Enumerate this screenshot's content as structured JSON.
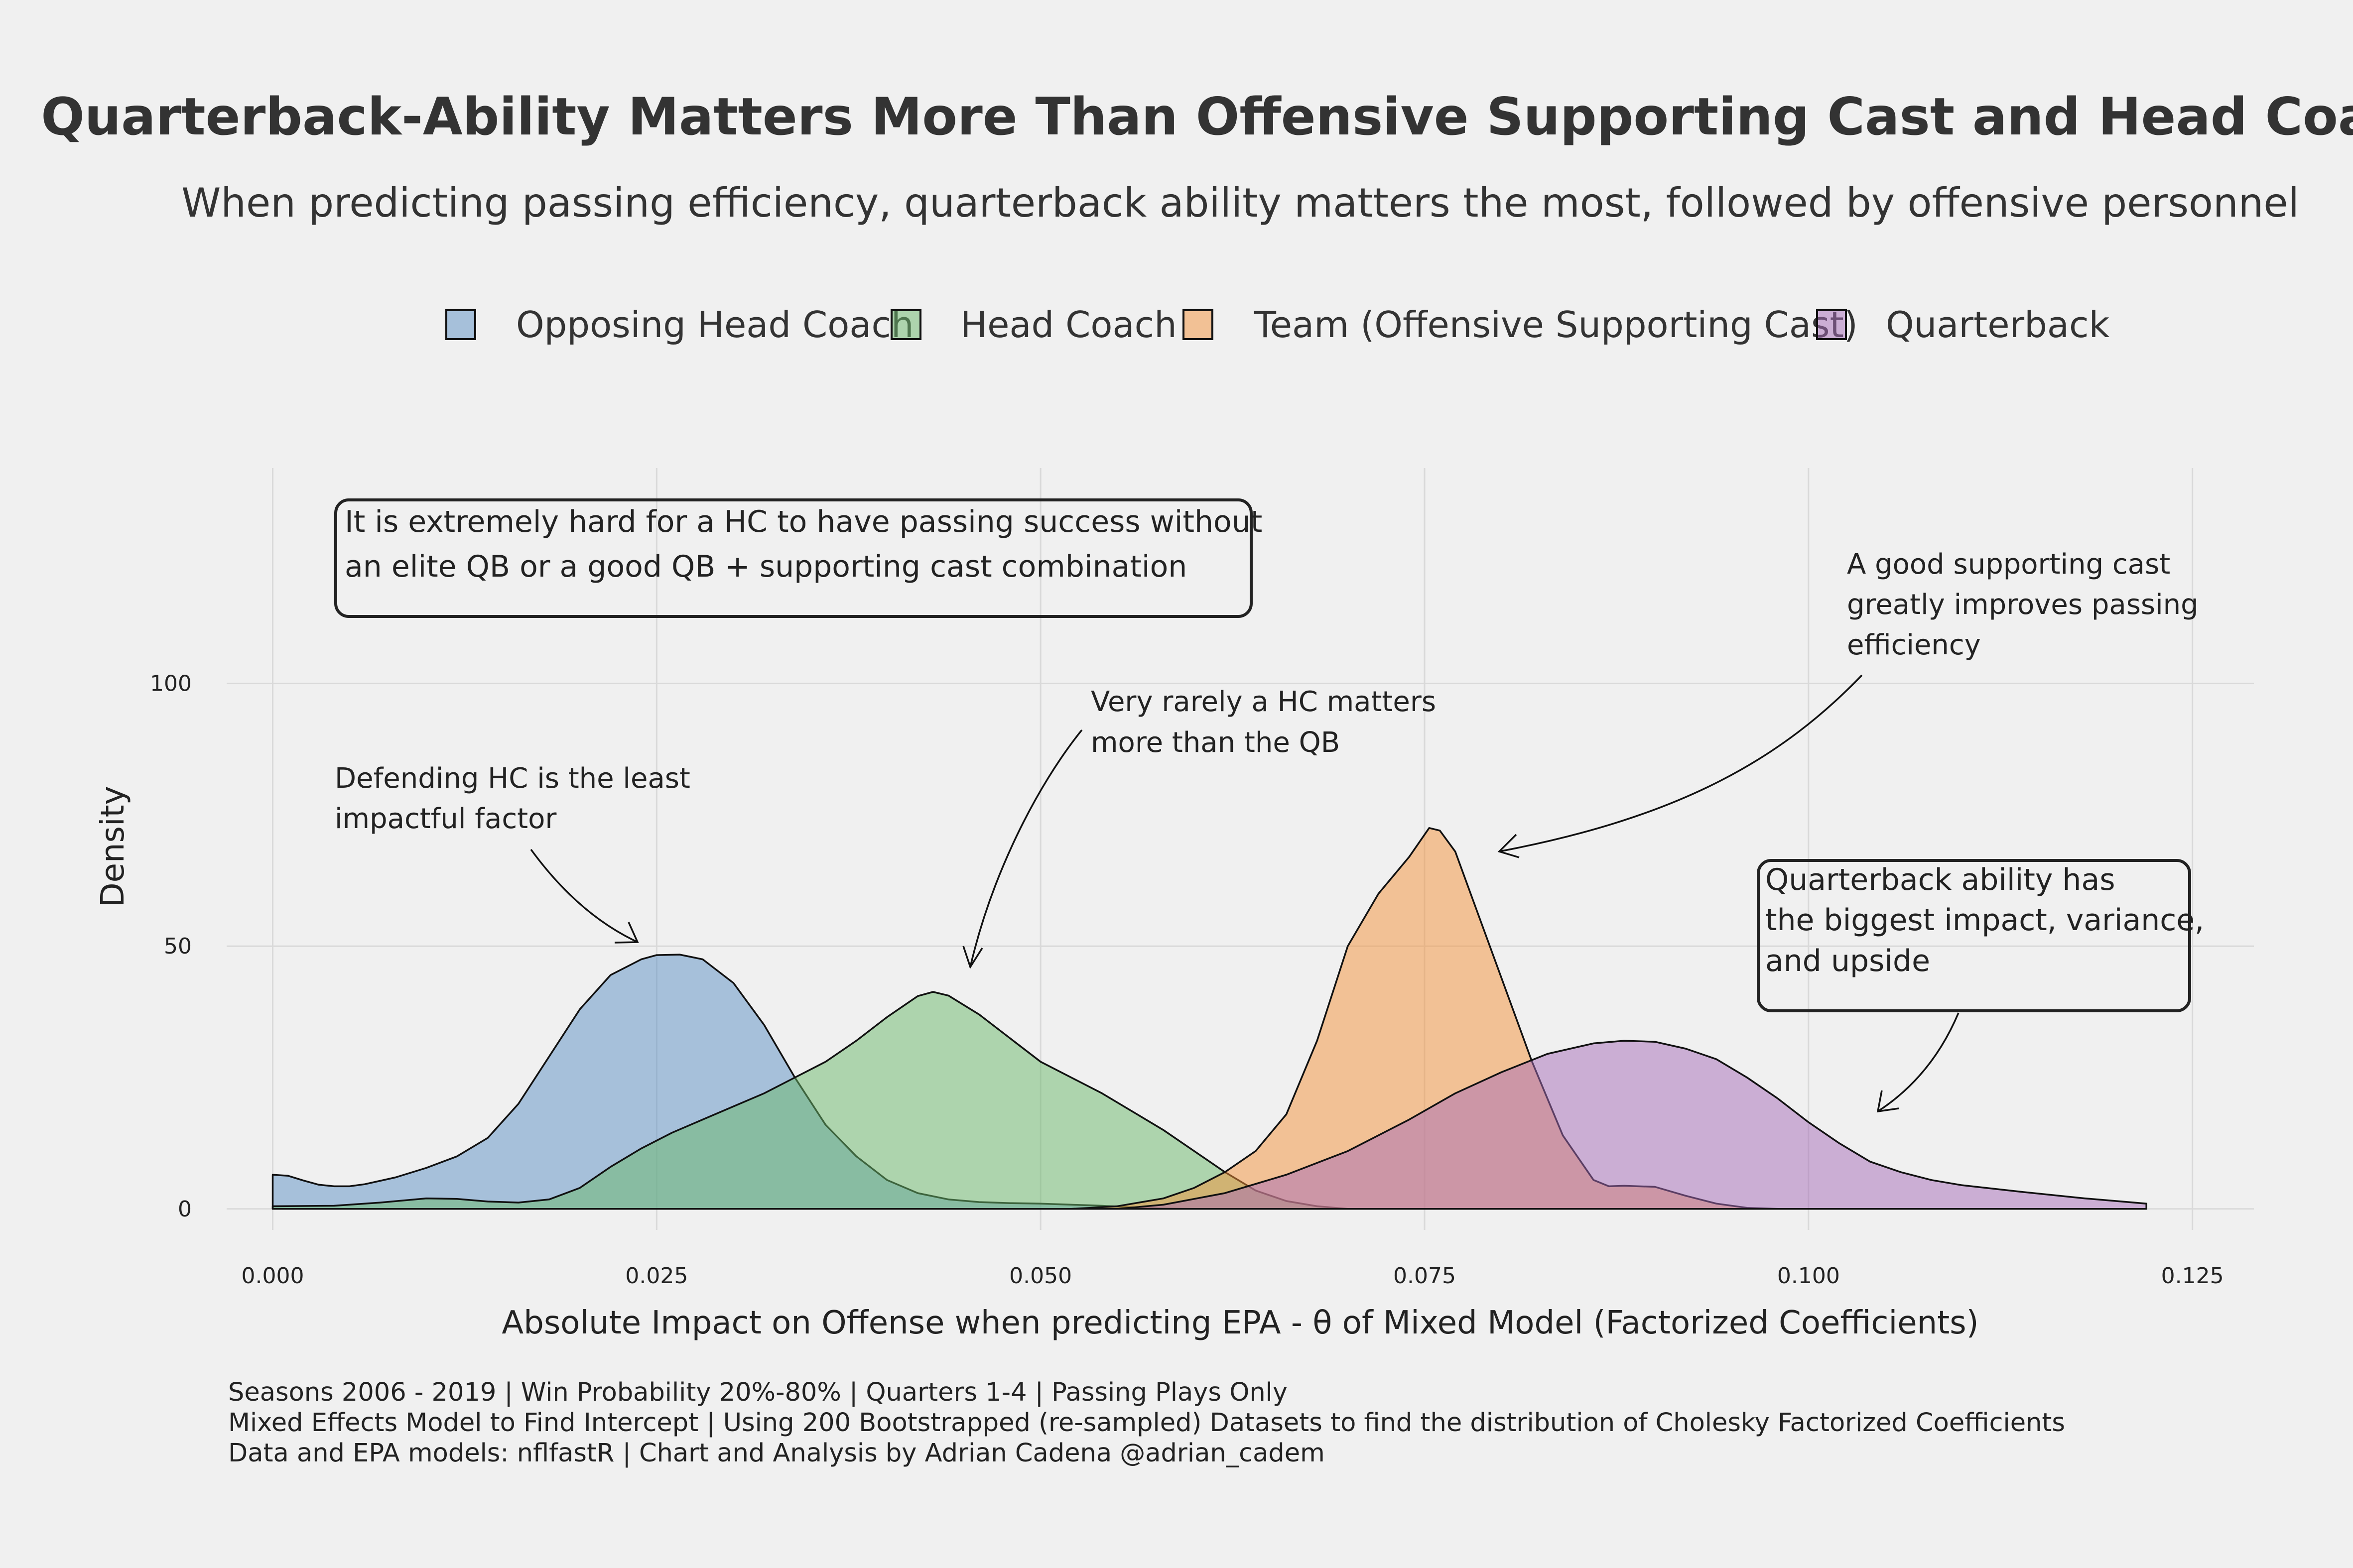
{
  "chart_data": {
    "type": "area",
    "title": "Quarterback-Ability Matters More Than Offensive Supporting Cast and Head Coach",
    "subtitle": "When predicting passing efficiency, quarterback ability matters the most, followed by offensive personnel",
    "xlabel": "Absolute Impact on Offense when predicting EPA - θ of Mixed Model (Factorized Coefficients)",
    "ylabel": "Density",
    "xlim": [
      -0.003,
      0.129
    ],
    "ylim": [
      -4,
      141
    ],
    "x_ticks": [
      "0.000",
      "0.025",
      "0.050",
      "0.075",
      "0.100",
      "0.125"
    ],
    "x_tick_values": [
      0,
      0.025,
      0.05,
      0.075,
      0.1,
      0.125
    ],
    "y_ticks": [
      "0",
      "50",
      "100"
    ],
    "y_tick_values": [
      0,
      50,
      100
    ],
    "grid": true,
    "legend_position": "top",
    "series": [
      {
        "name": "Opposing Head Coach",
        "color": "#5b8fc4",
        "points": [
          [
            0,
            6.5
          ],
          [
            0.001,
            6.3
          ],
          [
            0.002,
            5.4
          ],
          [
            0.003,
            4.6
          ],
          [
            0.004,
            4.3
          ],
          [
            0.005,
            4.3
          ],
          [
            0.006,
            4.7
          ],
          [
            0.008,
            6
          ],
          [
            0.01,
            7.8
          ],
          [
            0.012,
            10
          ],
          [
            0.014,
            13.5
          ],
          [
            0.016,
            20
          ],
          [
            0.018,
            29
          ],
          [
            0.02,
            38
          ],
          [
            0.022,
            44.5
          ],
          [
            0.024,
            47.5
          ],
          [
            0.025,
            48.3
          ],
          [
            0.0265,
            48.4
          ],
          [
            0.028,
            47.5
          ],
          [
            0.03,
            43
          ],
          [
            0.032,
            35
          ],
          [
            0.034,
            25
          ],
          [
            0.036,
            16
          ],
          [
            0.038,
            10
          ],
          [
            0.04,
            5.5
          ],
          [
            0.042,
            3
          ],
          [
            0.044,
            1.8
          ],
          [
            0.046,
            1.3
          ],
          [
            0.048,
            1.1
          ],
          [
            0.05,
            1
          ],
          [
            0.052,
            0.8
          ],
          [
            0.054,
            0.6
          ],
          [
            0.056,
            0.3
          ],
          [
            0.058,
            0.1
          ],
          [
            0.06,
            0
          ]
        ]
      },
      {
        "name": "Head Coach",
        "color": "#6ab86a",
        "points": [
          [
            0,
            0.5
          ],
          [
            0.004,
            0.6
          ],
          [
            0.007,
            1.2
          ],
          [
            0.01,
            2
          ],
          [
            0.012,
            1.9
          ],
          [
            0.014,
            1.4
          ],
          [
            0.016,
            1.2
          ],
          [
            0.018,
            1.8
          ],
          [
            0.02,
            4
          ],
          [
            0.022,
            8
          ],
          [
            0.024,
            11.5
          ],
          [
            0.026,
            14.5
          ],
          [
            0.028,
            17
          ],
          [
            0.03,
            19.5
          ],
          [
            0.032,
            22
          ],
          [
            0.034,
            25
          ],
          [
            0.036,
            28
          ],
          [
            0.038,
            32
          ],
          [
            0.04,
            36.5
          ],
          [
            0.042,
            40.5
          ],
          [
            0.043,
            41.3
          ],
          [
            0.044,
            40.6
          ],
          [
            0.046,
            37
          ],
          [
            0.048,
            32.5
          ],
          [
            0.05,
            28
          ],
          [
            0.052,
            25
          ],
          [
            0.054,
            22
          ],
          [
            0.056,
            18.5
          ],
          [
            0.058,
            15
          ],
          [
            0.06,
            11
          ],
          [
            0.062,
            7
          ],
          [
            0.064,
            3.5
          ],
          [
            0.066,
            1.5
          ],
          [
            0.068,
            0.5
          ],
          [
            0.07,
            0
          ]
        ]
      },
      {
        "name": "Team (Offensive Supporting Cast)",
        "color": "#f4923a",
        "points": [
          [
            0.052,
            0
          ],
          [
            0.055,
            0.5
          ],
          [
            0.058,
            2
          ],
          [
            0.06,
            4
          ],
          [
            0.062,
            7
          ],
          [
            0.064,
            11
          ],
          [
            0.066,
            18
          ],
          [
            0.068,
            32
          ],
          [
            0.07,
            50
          ],
          [
            0.072,
            60
          ],
          [
            0.074,
            67
          ],
          [
            0.0753,
            72.5
          ],
          [
            0.076,
            72
          ],
          [
            0.077,
            68
          ],
          [
            0.078,
            60
          ],
          [
            0.08,
            44
          ],
          [
            0.082,
            28
          ],
          [
            0.084,
            14
          ],
          [
            0.086,
            5.5
          ],
          [
            0.087,
            4.3
          ],
          [
            0.088,
            4.4
          ],
          [
            0.09,
            4.2
          ],
          [
            0.092,
            2.5
          ],
          [
            0.094,
            1
          ],
          [
            0.096,
            0.2
          ],
          [
            0.098,
            0
          ]
        ]
      },
      {
        "name": "Quarterback",
        "color": "#a66cb8",
        "points": [
          [
            0.055,
            0
          ],
          [
            0.058,
            0.8
          ],
          [
            0.062,
            3
          ],
          [
            0.066,
            6.5
          ],
          [
            0.07,
            11
          ],
          [
            0.074,
            17
          ],
          [
            0.077,
            22
          ],
          [
            0.08,
            26
          ],
          [
            0.083,
            29.5
          ],
          [
            0.086,
            31.5
          ],
          [
            0.088,
            32
          ],
          [
            0.09,
            31.8
          ],
          [
            0.092,
            30.5
          ],
          [
            0.094,
            28.5
          ],
          [
            0.096,
            25
          ],
          [
            0.098,
            21
          ],
          [
            0.1,
            16.5
          ],
          [
            0.102,
            12.5
          ],
          [
            0.104,
            9
          ],
          [
            0.106,
            7
          ],
          [
            0.108,
            5.5
          ],
          [
            0.11,
            4.5
          ],
          [
            0.114,
            3.2
          ],
          [
            0.118,
            2
          ],
          [
            0.122,
            1
          ]
        ]
      }
    ],
    "annotations": {
      "box_left": [
        "It is extremely hard for a HC to have passing success without",
        "an elite QB or a good QB + supporting cast combination"
      ],
      "note_defending": [
        "Defending HC is the least",
        "impactful factor"
      ],
      "note_hc": [
        "Very rarely a HC matters",
        "more than the QB"
      ],
      "note_team": [
        "A good supporting cast",
        "greatly improves passing",
        "efficiency"
      ],
      "box_qb": [
        "Quarterback ability has",
        "the biggest impact, variance,",
        "and upside"
      ]
    },
    "caption": [
      "Seasons 2006 - 2019 | Win Probability 20%-80% | Quarters 1-4 | Passing Plays Only",
      "Mixed Effects Model to Find Intercept | Using 200 Bootstrapped (re-sampled) Datasets to find the distribution of Cholesky Factorized Coefficients",
      "Data and EPA models: nflfastR | Chart and Analysis by Adrian Cadena @adrian_cadem"
    ]
  }
}
